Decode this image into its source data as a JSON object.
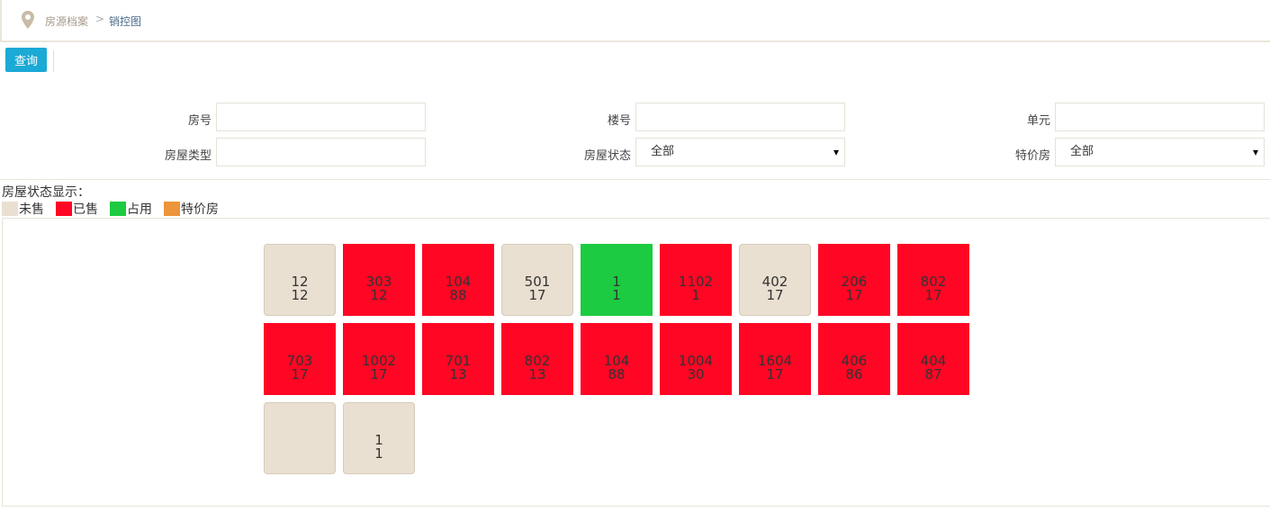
{
  "breadcrumb": {
    "icon": "map-pin-icon",
    "parent": "房源档案",
    "separator": ">",
    "current": "销控图"
  },
  "toolbar": {
    "query_label": "查询"
  },
  "form": {
    "room_no_label": "房号",
    "room_no_value": "",
    "building_label": "楼号",
    "building_value": "",
    "unit_label": "单元",
    "unit_value": "",
    "house_type_label": "房屋类型",
    "house_type_value": "",
    "status_label": "房屋状态",
    "status_value": "全部",
    "special_label": "特价房",
    "special_value": "全部"
  },
  "legend": {
    "title": "房屋状态显示：",
    "items": [
      {
        "label": "未售",
        "color": "#e9e0d1"
      },
      {
        "label": "已售",
        "color": "#ff0624"
      },
      {
        "label": "占用",
        "color": "#1ccb41"
      },
      {
        "label": "特价房",
        "color": "#ec953a"
      }
    ]
  },
  "rooms": [
    {
      "room": "12",
      "building": "12",
      "status": 0
    },
    {
      "room": "303",
      "building": "12",
      "status": 1
    },
    {
      "room": "104",
      "building": "88",
      "status": 1
    },
    {
      "room": "501",
      "building": "17",
      "status": 0
    },
    {
      "room": "1",
      "building": "1",
      "status": 2
    },
    {
      "room": "1102",
      "building": "1",
      "status": 1
    },
    {
      "room": "402",
      "building": "17",
      "status": 0
    },
    {
      "room": "206",
      "building": "17",
      "status": 1
    },
    {
      "room": "802",
      "building": "17",
      "status": 1
    },
    {
      "room": "703",
      "building": "17",
      "status": 1
    },
    {
      "room": "1002",
      "building": "17",
      "status": 1
    },
    {
      "room": "701",
      "building": "13",
      "status": 1
    },
    {
      "room": "802",
      "building": "13",
      "status": 1
    },
    {
      "room": "104",
      "building": "88",
      "status": 1
    },
    {
      "room": "1004",
      "building": "30",
      "status": 1
    },
    {
      "room": "1604",
      "building": "17",
      "status": 1
    },
    {
      "room": "406",
      "building": "86",
      "status": 1
    },
    {
      "room": "404",
      "building": "87",
      "status": 1
    },
    {
      "room": "",
      "building": "",
      "status": 0
    },
    {
      "room": "1",
      "building": "1",
      "status": 0
    }
  ]
}
